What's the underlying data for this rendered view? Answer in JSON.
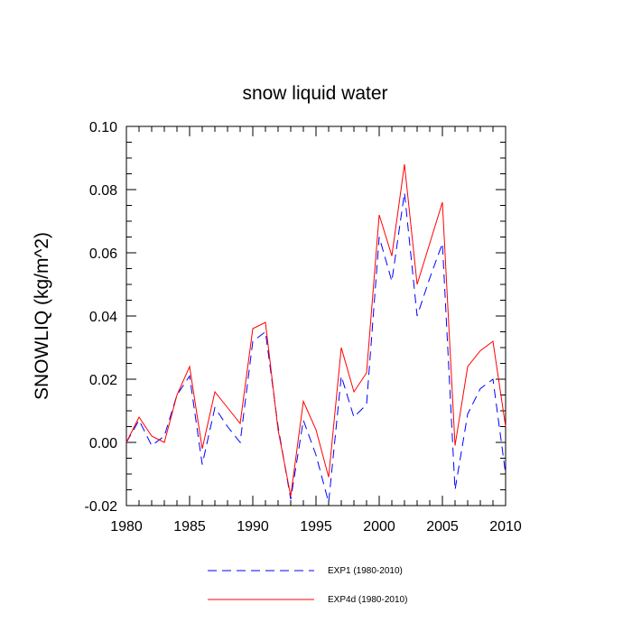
{
  "chart_data": {
    "type": "line",
    "title": "snow liquid water",
    "xlabel": "",
    "ylabel": "SNOWLIQ  (kg/m^2)",
    "xlim": [
      1980,
      2010
    ],
    "ylim": [
      -0.02,
      0.1
    ],
    "xticks": [
      1980,
      1985,
      1990,
      1995,
      2000,
      2005,
      2010
    ],
    "xtick_labels": [
      "1980",
      "1985",
      "1990",
      "1995",
      "2000",
      "2005",
      "2010"
    ],
    "yticks": [
      -0.02,
      0,
      0.02,
      0.04,
      0.06,
      0.08,
      0.1
    ],
    "ytick_labels": [
      "-0.02",
      "0.00",
      "0.02",
      "0.04",
      "0.06",
      "0.08",
      "0.10"
    ],
    "grid": false,
    "legend": "bottom",
    "x": [
      1980,
      1981,
      1982,
      1983,
      1984,
      1985,
      1986,
      1987,
      1988,
      1989,
      1990,
      1991,
      1992,
      1993,
      1994,
      1995,
      1996,
      1997,
      1998,
      1999,
      2000,
      2001,
      2002,
      2003,
      2004,
      2005,
      2006,
      2007,
      2008,
      2009,
      2010
    ],
    "series": [
      {
        "name": "EXP1 (1980-2010)",
        "color": "#0000ff",
        "dash": "dashed",
        "values": [
          0.0,
          0.007,
          -0.001,
          0.002,
          0.015,
          0.021,
          -0.007,
          0.011,
          0.005,
          0.0,
          0.032,
          0.035,
          0.005,
          -0.018,
          0.007,
          -0.004,
          -0.019,
          0.021,
          0.008,
          0.012,
          0.065,
          0.051,
          0.079,
          0.04,
          0.052,
          0.063,
          -0.015,
          0.009,
          0.017,
          0.02,
          -0.01
        ]
      },
      {
        "name": "EXP4d (1980-2010)",
        "color": "#ff0000",
        "dash": "solid",
        "values": [
          0.0,
          0.008,
          0.002,
          0.0,
          0.015,
          0.024,
          -0.002,
          0.016,
          0.011,
          0.006,
          0.036,
          0.038,
          0.004,
          -0.017,
          0.013,
          0.004,
          -0.011,
          0.03,
          0.016,
          0.022,
          0.072,
          0.059,
          0.088,
          0.05,
          0.063,
          0.076,
          -0.001,
          0.024,
          0.029,
          0.032,
          0.005
        ]
      }
    ]
  }
}
